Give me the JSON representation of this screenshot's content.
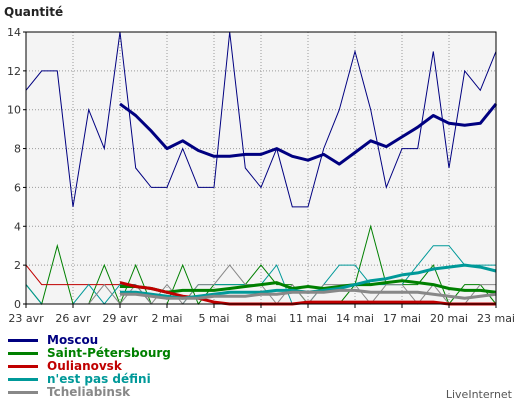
{
  "chart_data": {
    "type": "line",
    "ylabel": "Quantité",
    "ylim": [
      0,
      14
    ],
    "yticks": [
      0,
      2,
      4,
      6,
      8,
      10,
      12,
      14
    ],
    "grid": true,
    "xticklabels": [
      "23 avr",
      "26 avr",
      "29 avr",
      "2 mai",
      "5 mai",
      "8 mai",
      "11 mai",
      "14 mai",
      "17 mai",
      "20 mai",
      "23 mai"
    ],
    "x_start": 0,
    "x_end": 30,
    "series": [
      {
        "name": "Moscou",
        "color": "#000080",
        "values": [
          11,
          12,
          12,
          5,
          10,
          8,
          14,
          7,
          6,
          6,
          8,
          6,
          6,
          14,
          7,
          6,
          8,
          5,
          5,
          8,
          10,
          13,
          10,
          6,
          8,
          8,
          13,
          7,
          12,
          11,
          13
        ],
        "avg_start": 6,
        "avg": [
          10.3,
          9.7,
          8.9,
          8.0,
          8.4,
          7.9,
          7.6,
          7.6,
          7.7,
          7.7,
          8.0,
          7.6,
          7.4,
          7.7,
          7.2,
          7.8,
          8.4,
          8.1,
          8.6,
          9.1,
          9.7,
          9.3,
          9.2,
          9.3,
          10.3
        ]
      },
      {
        "name": "Saint-Pétersbourg",
        "color": "#008000",
        "values": [
          1,
          0,
          3,
          0,
          0,
          2,
          0,
          2,
          0,
          0,
          2,
          0,
          1,
          1,
          1,
          2,
          1,
          1,
          0,
          0,
          0,
          1,
          4,
          1,
          1,
          1,
          2,
          0,
          1,
          1,
          0
        ],
        "avg_start": 6,
        "avg": [
          0.9,
          0.9,
          0.8,
          0.6,
          0.7,
          0.7,
          0.7,
          0.8,
          0.9,
          1.0,
          1.1,
          0.8,
          0.9,
          0.8,
          0.9,
          1.0,
          1.0,
          1.1,
          1.2,
          1.1,
          1.0,
          0.8,
          0.7,
          0.7,
          0.6
        ]
      },
      {
        "name": "Oulianovsk",
        "color": "#c00000",
        "values": [
          2,
          1,
          1,
          1,
          1,
          1,
          1,
          1,
          0,
          0,
          0,
          0,
          0,
          0,
          0,
          0,
          0,
          0,
          0,
          0,
          0,
          0,
          0,
          0,
          0,
          0,
          0,
          0,
          0,
          0,
          0
        ],
        "avg_start": 6,
        "avg": [
          1.1,
          0.9,
          0.8,
          0.6,
          0.4,
          0.3,
          0.1,
          0.0,
          0.0,
          0.0,
          0.0,
          0.0,
          0.1,
          0.1,
          0.1,
          0.1,
          0.1,
          0.1,
          0.1,
          0.1,
          0.1,
          0.0,
          0.0,
          0.0,
          0.0
        ]
      },
      {
        "name": "n'est pas défini",
        "color": "#009999",
        "values": [
          1,
          0,
          0,
          0,
          1,
          0,
          1,
          1,
          0,
          0,
          0,
          1,
          1,
          1,
          1,
          1,
          2,
          0,
          0,
          1,
          2,
          2,
          1,
          1,
          1,
          2,
          3,
          3,
          2,
          2,
          2
        ],
        "avg_start": 6,
        "avg": [
          0.6,
          0.6,
          0.5,
          0.4,
          0.3,
          0.4,
          0.5,
          0.6,
          0.6,
          0.6,
          0.7,
          0.7,
          0.6,
          0.7,
          0.8,
          1.0,
          1.2,
          1.3,
          1.5,
          1.6,
          1.8,
          1.9,
          2.0,
          1.9,
          1.7
        ]
      },
      {
        "name": "Tcheliabinsk",
        "color": "#888888",
        "values": [
          0,
          0,
          0,
          0,
          0,
          1,
          0,
          1,
          0,
          1,
          0,
          1,
          1,
          2,
          1,
          1,
          0,
          1,
          0,
          1,
          1,
          1,
          0,
          1,
          1,
          0,
          1,
          0,
          0,
          1,
          1
        ],
        "avg_start": 6,
        "avg": [
          0.5,
          0.5,
          0.4,
          0.3,
          0.3,
          0.3,
          0.4,
          0.4,
          0.4,
          0.5,
          0.5,
          0.6,
          0.6,
          0.6,
          0.7,
          0.7,
          0.6,
          0.6,
          0.6,
          0.6,
          0.5,
          0.4,
          0.3,
          0.4,
          0.5
        ]
      }
    ]
  },
  "credit": "LiveInternet"
}
